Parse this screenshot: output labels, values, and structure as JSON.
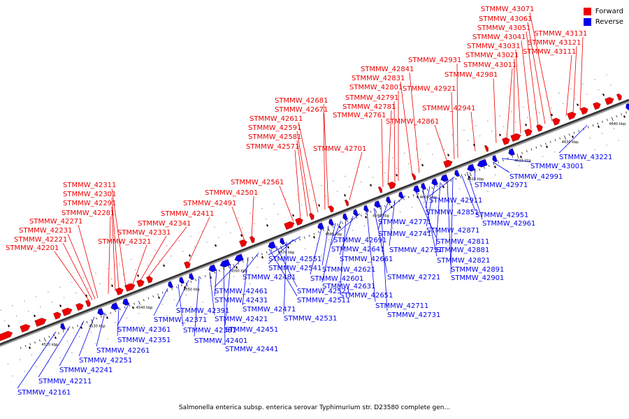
{
  "legend": {
    "forward_label": "Forward",
    "reverse_label": "Reverse",
    "forward_color": "#ee0000",
    "reverse_color": "#0000ee"
  },
  "caption": "Salmonella enterica subsp. enterica serovar Typhimurium str. D23580 complete gen...",
  "scale_labels": [
    "4520 kbp",
    "4530 kbp",
    "4540 kbp",
    "4550 kbp",
    "4560 kbp",
    "4570 kbp",
    "4580 kbp",
    "4590 kbp",
    "4600 kbp",
    "4610 kbp",
    "4620 kbp",
    "4630 kbp",
    "4640 kbp"
  ],
  "forward_genes": [
    "STMMW_42201",
    "STMMW_42221",
    "STMMW_42231",
    "STMMW_42271",
    "STMMW_42281",
    "STMMW_42291",
    "STMMW_42301",
    "STMMW_42311",
    "STMMW_42321",
    "STMMW_42331",
    "STMMW_42341",
    "STMMW_42411",
    "STMMW_42491",
    "STMMW_42501",
    "STMMW_42561",
    "STMMW_42571",
    "STMMW_42581",
    "STMMW_42591",
    "STMMW_42611",
    "STMMW_42671",
    "STMMW_42681",
    "STMMW_42701",
    "STMMW_42761",
    "STMMW_42781",
    "STMMW_42791",
    "STMMW_42801",
    "STMMW_42831",
    "STMMW_42841",
    "STMMW_42861",
    "STMMW_42921",
    "STMMW_42931",
    "STMMW_42941",
    "STMMW_42981",
    "STMMW_43011",
    "STMMW_43021",
    "STMMW_43031",
    "STMMW_43041",
    "STMMW_43051",
    "STMMW_43061",
    "STMMW_43071",
    "STMMW_43111",
    "STMMW_43121",
    "STMMW_43131"
  ],
  "reverse_genes": [
    "STMMW_42161",
    "STMMW_42211",
    "STMMW_42241",
    "STMMW_42251",
    "STMMW_42261",
    "STMMW_42351",
    "STMMW_42361",
    "STMMW_42371",
    "STMMW_42381",
    "STMMW_42391",
    "STMMW_42401",
    "STMMW_42421",
    "STMMW_42431",
    "STMMW_42441",
    "STMMW_42451",
    "STMMW_42461",
    "STMMW_42471",
    "STMMW_42481",
    "STMMW_42511",
    "STMMW_42521",
    "STMMW_42531",
    "STMMW_42541",
    "STMMW_42551",
    "STMMW_42601",
    "STMMW_42621",
    "STMMW_42631",
    "STMMW_42641",
    "STMMW_42651",
    "STMMW_42661",
    "STMMW_42691",
    "STMMW_42711",
    "STMMW_42721",
    "STMMW_42731",
    "STMMW_42741",
    "STMMW_42751",
    "STMMW_42771",
    "STMMW_42811",
    "STMMW_42821",
    "STMMW_42851",
    "STMMW_42871",
    "STMMW_42881",
    "STMMW_42891",
    "STMMW_42901",
    "STMMW_42911",
    "STMMW_42951",
    "STMMW_42961",
    "STMMW_42971",
    "STMMW_42991",
    "STMMW_43001",
    "STMMW_43221"
  ]
}
